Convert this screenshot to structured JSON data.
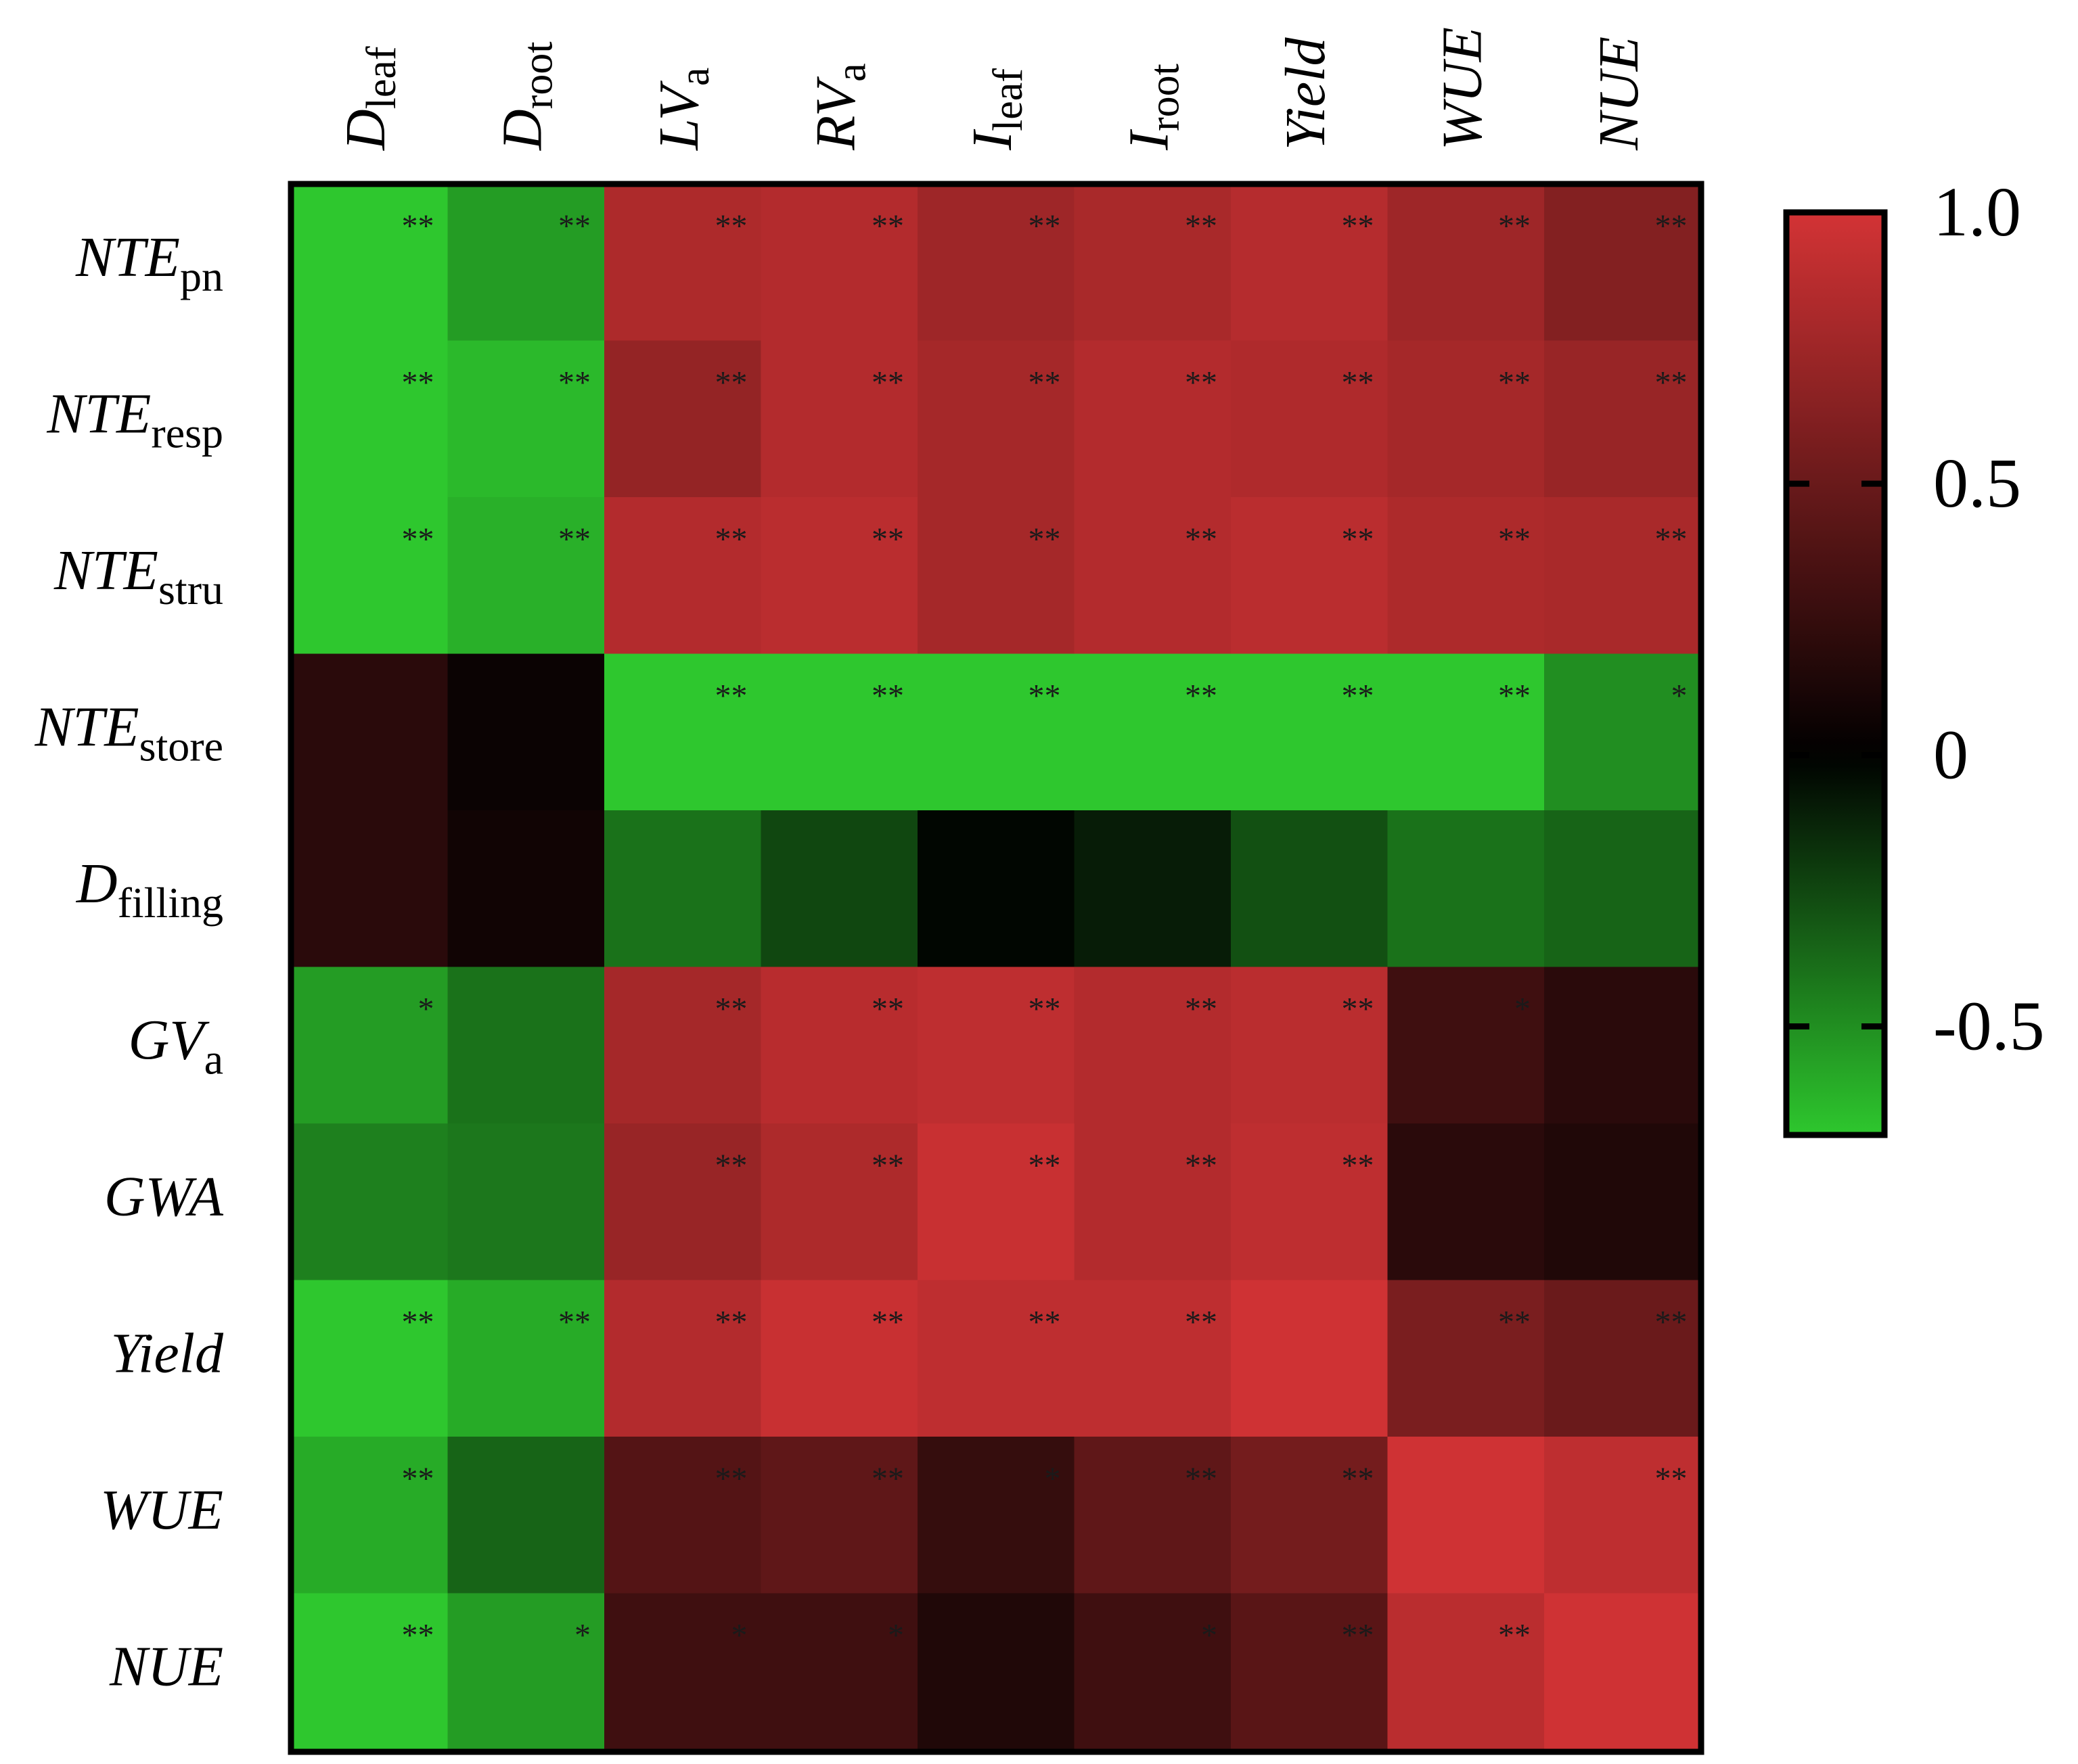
{
  "chart_data": {
    "type": "heatmap",
    "columns": [
      {
        "base": "D",
        "sub": "leaf"
      },
      {
        "base": "D",
        "sub": "root"
      },
      {
        "base": "LV",
        "sub": "a"
      },
      {
        "base": "RV",
        "sub": "a"
      },
      {
        "base": "I",
        "sub": "leaf"
      },
      {
        "base": "I",
        "sub": "root"
      },
      {
        "base": "Yield",
        "sub": ""
      },
      {
        "base": "WUE",
        "sub": ""
      },
      {
        "base": "NUE",
        "sub": ""
      }
    ],
    "rows": [
      {
        "base": "NTE",
        "sub": "pn"
      },
      {
        "base": "NTE",
        "sub": "resp"
      },
      {
        "base": "NTE",
        "sub": "stru"
      },
      {
        "base": "NTE",
        "sub": "store"
      },
      {
        "base": "D",
        "sub": "filling"
      },
      {
        "base": "GV",
        "sub": "a"
      },
      {
        "base": "GWA",
        "sub": ""
      },
      {
        "base": "Yield",
        "sub": ""
      },
      {
        "base": "WUE",
        "sub": ""
      },
      {
        "base": "NUE",
        "sub": ""
      }
    ],
    "values": [
      [
        -0.75,
        -0.55,
        0.82,
        0.85,
        0.75,
        0.8,
        0.86,
        0.75,
        0.62
      ],
      [
        -0.78,
        -0.65,
        0.7,
        0.85,
        0.78,
        0.85,
        0.83,
        0.78,
        0.72
      ],
      [
        -0.78,
        -0.62,
        0.85,
        0.88,
        0.78,
        0.85,
        0.88,
        0.82,
        0.8
      ],
      [
        0.2,
        0.05,
        -0.78,
        -0.75,
        -0.73,
        -0.72,
        -0.9,
        -0.7,
        -0.5
      ],
      [
        0.2,
        0.08,
        -0.4,
        -0.25,
        -0.02,
        -0.1,
        -0.28,
        -0.4,
        -0.35
      ],
      [
        -0.55,
        -0.4,
        0.78,
        0.87,
        0.9,
        0.85,
        0.88,
        0.3,
        0.2
      ],
      [
        -0.45,
        -0.42,
        0.72,
        0.82,
        0.95,
        0.85,
        0.9,
        0.2,
        0.15
      ],
      [
        -0.7,
        -0.6,
        0.85,
        0.95,
        0.9,
        0.9,
        0.98,
        0.58,
        0.5
      ],
      [
        -0.6,
        -0.35,
        0.4,
        0.45,
        0.25,
        0.45,
        0.55,
        0.98,
        0.9
      ],
      [
        -0.7,
        -0.55,
        0.3,
        0.3,
        0.15,
        0.3,
        0.42,
        0.88,
        0.98
      ]
    ],
    "significance": [
      [
        "**",
        "**",
        "**",
        "**",
        "**",
        "**",
        "**",
        "**",
        "**"
      ],
      [
        "**",
        "**",
        "**",
        "**",
        "**",
        "**",
        "**",
        "**",
        "**"
      ],
      [
        "**",
        "**",
        "**",
        "**",
        "**",
        "**",
        "**",
        "**",
        "**"
      ],
      [
        "",
        "",
        "**",
        "**",
        "**",
        "**",
        "**",
        "**",
        "*"
      ],
      [
        "",
        "",
        "",
        "",
        "",
        "",
        "",
        "",
        ""
      ],
      [
        "*",
        "",
        "**",
        "**",
        "**",
        "**",
        "**",
        "*",
        ""
      ],
      [
        "",
        "",
        "**",
        "**",
        "**",
        "**",
        "**",
        "",
        ""
      ],
      [
        "**",
        "**",
        "**",
        "**",
        "**",
        "**",
        "",
        "**",
        "**"
      ],
      [
        "**",
        "",
        "**",
        "**",
        "*",
        "**",
        "**",
        "",
        "**"
      ],
      [
        "**",
        "*",
        "*",
        "*",
        "",
        "*",
        "**",
        "**",
        ""
      ]
    ],
    "colorbar": {
      "range": [
        -0.7,
        1.0
      ],
      "ticks": [
        {
          "value": 1.0,
          "label": "1.0"
        },
        {
          "value": 0.5,
          "label": "0.5"
        },
        {
          "value": 0,
          "label": "0"
        },
        {
          "value": -0.5,
          "label": "-0.5"
        }
      ],
      "colors": {
        "positive": "#d33335",
        "zero": "#000000",
        "negative": "#2ec72e"
      }
    }
  }
}
